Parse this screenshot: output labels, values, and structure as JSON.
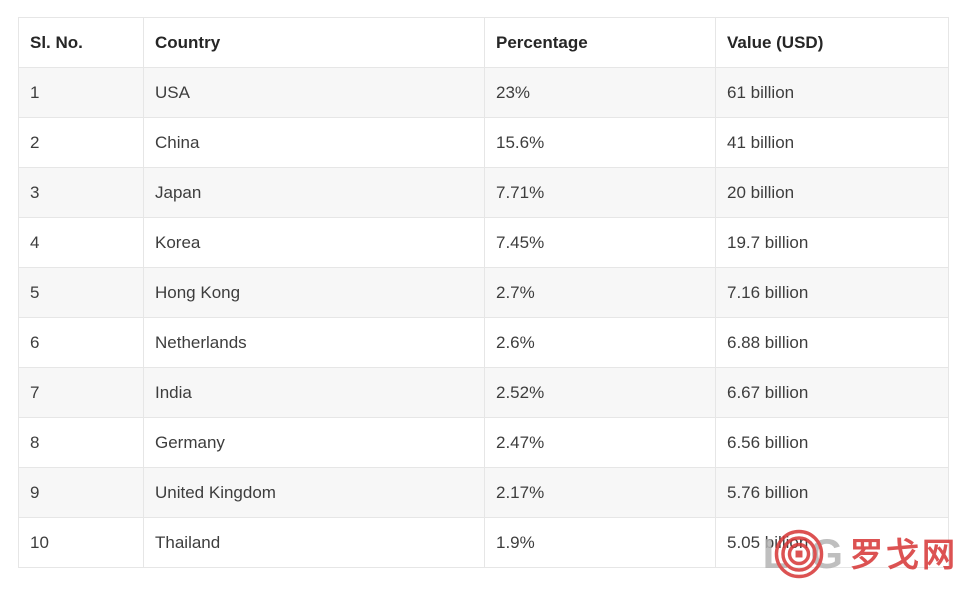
{
  "table": {
    "columns": [
      {
        "key": "sl_no",
        "label": "Sl. No."
      },
      {
        "key": "country",
        "label": "Country"
      },
      {
        "key": "percentage",
        "label": "Percentage"
      },
      {
        "key": "value_usd",
        "label": "Value (USD)"
      }
    ],
    "rows": [
      {
        "sl_no": "1",
        "country": "USA",
        "percentage": "23%",
        "value_usd": "61 billion"
      },
      {
        "sl_no": "2",
        "country": "China",
        "percentage": "15.6%",
        "value_usd": "41 billion"
      },
      {
        "sl_no": "3",
        "country": "Japan",
        "percentage": "7.71%",
        "value_usd": "20 billion"
      },
      {
        "sl_no": "4",
        "country": "Korea",
        "percentage": "7.45%",
        "value_usd": "19.7 billion"
      },
      {
        "sl_no": "5",
        "country": "Hong Kong",
        "percentage": "2.7%",
        "value_usd": "7.16 billion"
      },
      {
        "sl_no": "6",
        "country": "Netherlands",
        "percentage": "2.6%",
        "value_usd": "6.88 billion"
      },
      {
        "sl_no": "7",
        "country": "India",
        "percentage": "2.52%",
        "value_usd": "6.67 billion"
      },
      {
        "sl_no": "8",
        "country": "Germany",
        "percentage": "2.47%",
        "value_usd": "6.56 billion"
      },
      {
        "sl_no": "9",
        "country": "United Kingdom",
        "percentage": "2.17%",
        "value_usd": "5.76 billion"
      },
      {
        "sl_no": "10",
        "country": "Thailand",
        "percentage": "1.9%",
        "value_usd": "5.05 billion"
      }
    ]
  },
  "watermark": {
    "letter_l": "L",
    "letter_g": "G",
    "cjk_text": "罗戈网",
    "target_icon": "concentric-circles-icon"
  },
  "colors": {
    "stripe_bg": "#f7f7f7",
    "border": "#e6e6e6",
    "header_text": "#262626",
    "cell_text": "#3d3d3d",
    "watermark_red": "#d63434",
    "watermark_gray": "#b4b4b4"
  }
}
